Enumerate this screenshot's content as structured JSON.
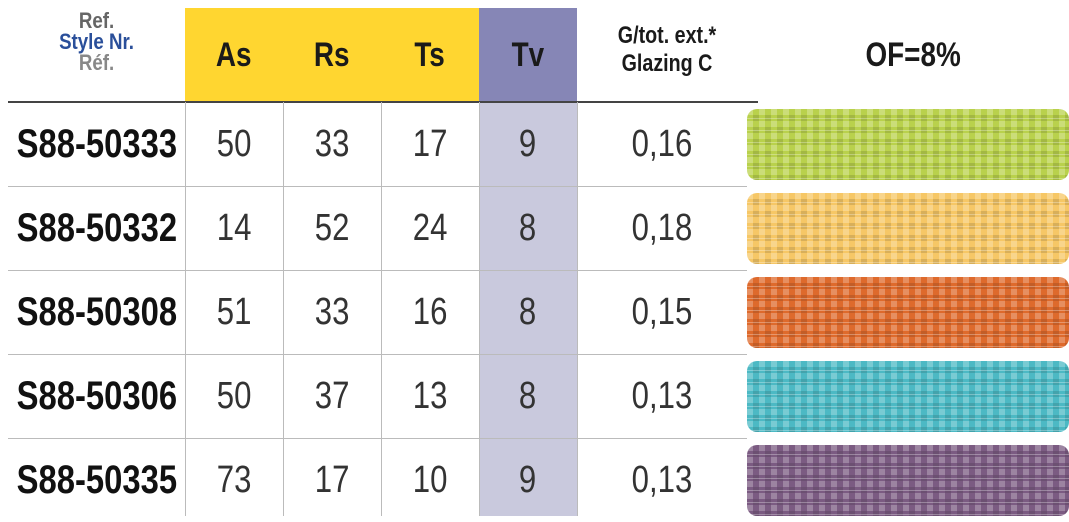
{
  "header": {
    "ref": [
      "Ref.",
      "Style Nr.",
      "Réf."
    ],
    "columns": [
      "As",
      "Rs",
      "Ts",
      "Tv"
    ],
    "g": [
      "G/tot. ext.*",
      "Glazing C"
    ],
    "of": "OF=8%"
  },
  "rows": [
    {
      "ref": "S88-50333",
      "values": [
        50,
        33,
        17,
        9,
        "0,16"
      ]
    },
    {
      "ref": "S88-50332",
      "values": [
        14,
        52,
        24,
        8,
        "0,18"
      ]
    },
    {
      "ref": "S88-50308",
      "values": [
        51,
        33,
        16,
        8,
        "0,15"
      ]
    },
    {
      "ref": "S88-50306",
      "values": [
        50,
        37,
        13,
        8,
        "0,13"
      ]
    },
    {
      "ref": "S88-50335",
      "values": [
        73,
        17,
        10,
        9,
        "0,13"
      ]
    }
  ]
}
